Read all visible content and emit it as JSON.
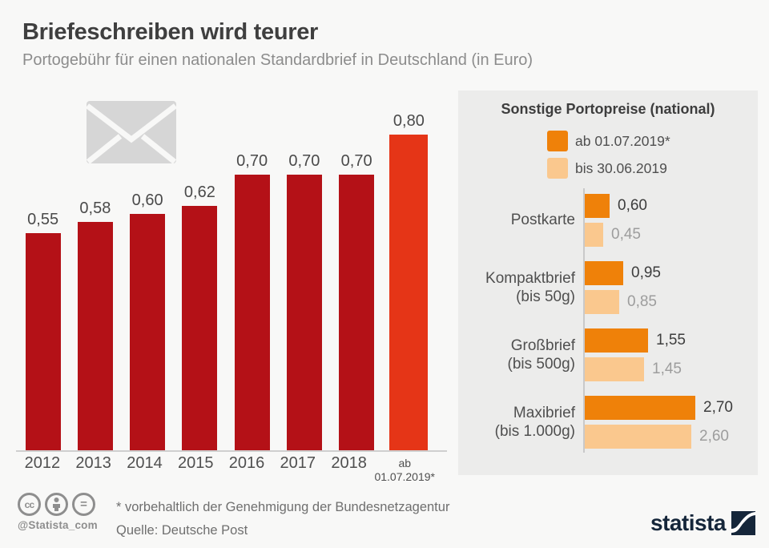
{
  "header": {
    "title": "Briefeschreiben wird teurer",
    "subtitle": "Portogebühr für einen nationalen Standardbrief in Deutschland (in Euro)"
  },
  "chart_data": [
    {
      "type": "bar",
      "title": "Portogebühr für einen nationalen Standardbrief in Deutschland (in Euro)",
      "categories": [
        "2012",
        "2013",
        "2014",
        "2015",
        "2016",
        "2017",
        "2018",
        "ab\n01.07.2019*"
      ],
      "values": [
        0.55,
        0.58,
        0.6,
        0.62,
        0.7,
        0.7,
        0.7,
        0.8
      ],
      "value_labels": [
        "0,55",
        "0,58",
        "0,60",
        "0,62",
        "0,70",
        "0,70",
        "0,70",
        "0,80"
      ],
      "bar_color": "#b41117",
      "highlight_color": "#e53517",
      "highlight_index": 7,
      "ylim": [
        0,
        0.85
      ],
      "grid": false,
      "legend": "none"
    },
    {
      "type": "bar",
      "orientation": "horizontal",
      "title": "Sonstige Portopreise (national)",
      "categories": [
        "Postkarte",
        "Kompaktbrief\n(bis 50g)",
        "Großbrief\n(bis 500g)",
        "Maxibrief\n(bis 1.000g)"
      ],
      "series": [
        {
          "name": "ab 01.07.2019*",
          "color": "#ef8109",
          "values": [
            0.6,
            0.95,
            1.55,
            2.7
          ],
          "value_labels": [
            "0,60",
            "0,95",
            "1,55",
            "2,70"
          ]
        },
        {
          "name": "bis 30.06.2019",
          "color": "#fac88e",
          "values": [
            0.45,
            0.85,
            1.45,
            2.6
          ],
          "value_labels": [
            "0,45",
            "0,85",
            "1,45",
            "2,60"
          ]
        }
      ],
      "xlim": [
        0,
        2.85
      ],
      "grid": false,
      "legend_position": "top"
    }
  ],
  "footer": {
    "note": "* vorbehaltlich der Genehmigung der Bundesnetzagentur",
    "source": "Quelle: Deutsche Post",
    "handle": "@Statista_com",
    "cc_label": "cc",
    "nd_label": "=",
    "logo_text": "statista"
  },
  "colors": {
    "bar_dark_red": "#b41117",
    "bar_highlight_red": "#e53517",
    "orange_new": "#ef8109",
    "orange_old": "#fac88e",
    "panel_bg": "#ececeb",
    "logo_navy": "#15263a"
  }
}
